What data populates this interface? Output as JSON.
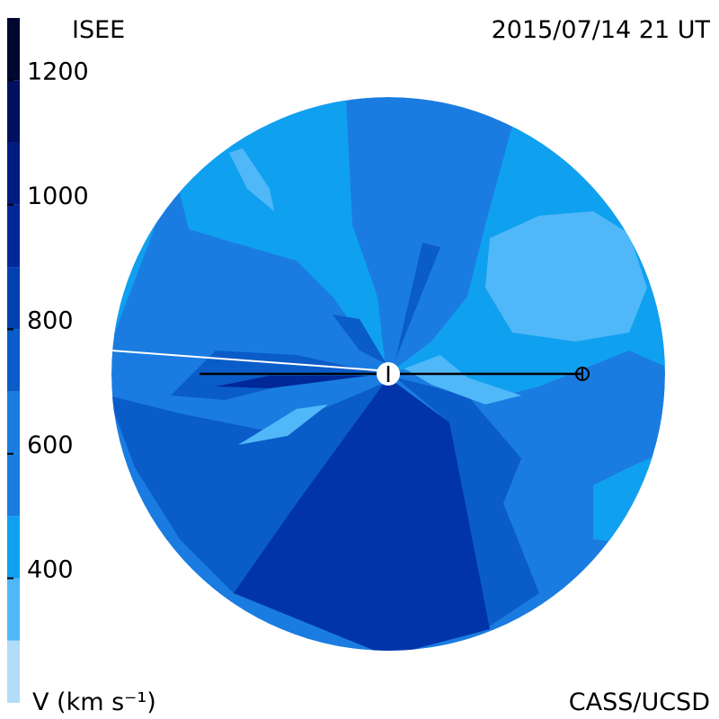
{
  "header": {
    "title": "ISEE",
    "timestamp": "2015/07/14 21 UT"
  },
  "footer": {
    "credit": "CASS/UCSD"
  },
  "colorbar": {
    "label": "V (km s⁻¹)",
    "range": [
      200,
      1300
    ],
    "ticks": [
      400,
      600,
      800,
      1000,
      1200
    ],
    "bands": [
      {
        "min": 200,
        "max": 300,
        "color": "#b2ddf8"
      },
      {
        "min": 300,
        "max": 400,
        "color": "#50b8f8"
      },
      {
        "min": 400,
        "max": 500,
        "color": "#10a0f0"
      },
      {
        "min": 500,
        "max": 600,
        "color": "#1a7ce0"
      },
      {
        "min": 600,
        "max": 700,
        "color": "#1a7ce0"
      },
      {
        "min": 700,
        "max": 800,
        "color": "#0a5cc8"
      },
      {
        "min": 800,
        "max": 900,
        "color": "#0040b0"
      },
      {
        "min": 900,
        "max": 1000,
        "color": "#002898"
      },
      {
        "min": 1000,
        "max": 1100,
        "color": "#001c80"
      },
      {
        "min": 1100,
        "max": 1200,
        "color": "#001060"
      },
      {
        "min": 1200,
        "max": 1300,
        "color": "#000830"
      }
    ]
  }
}
